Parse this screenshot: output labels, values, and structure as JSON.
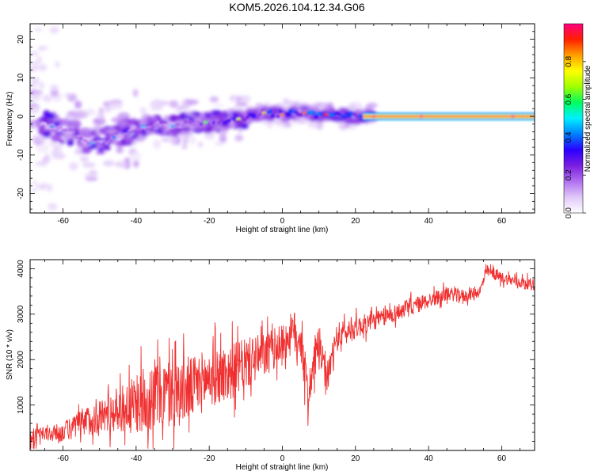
{
  "page": {
    "title": "KOM5.2026.104.12.34.G06"
  },
  "chart_data": [
    {
      "type": "heatmap",
      "title": "",
      "xlabel": "Height of straight line (km)",
      "ylabel": "Frequency (Hz)",
      "xlim": [
        -69,
        69
      ],
      "ylim": [
        -25,
        24
      ],
      "xticks": [
        -60,
        -40,
        -20,
        0,
        20,
        40,
        60
      ],
      "yticks": [
        -20,
        -10,
        0,
        10,
        20
      ],
      "colorbar": {
        "label": "Normalized spectral amplitude",
        "range": [
          0,
          1
        ],
        "ticks": [
          0.0,
          0.2,
          0.4,
          0.6,
          0.8
        ],
        "colormap": [
          "#ffffff",
          "#e0c8f8",
          "#b070f0",
          "#7a1fe0",
          "#2a00ff",
          "#0080ff",
          "#00f0ff",
          "#00ff60",
          "#a0ff00",
          "#ffff00",
          "#ffa000",
          "#ff2000",
          "#ff0080"
        ]
      },
      "ridge": {
        "x": [
          -65,
          -60,
          -55,
          -52,
          -48,
          -45,
          -40,
          -35,
          -30,
          -25,
          -20,
          -15,
          -10,
          -5,
          0,
          5,
          10,
          15,
          20,
          25,
          30,
          40,
          50,
          60,
          69
        ],
        "freq": [
          -2,
          -3.5,
          -5.5,
          -7,
          -6.5,
          -5,
          -3,
          -2,
          -2.5,
          -1.5,
          -1.5,
          -1,
          -0.5,
          1,
          0.5,
          1,
          0.5,
          0.5,
          0,
          0,
          0,
          0,
          0,
          0,
          0
        ],
        "amplitude": [
          0.25,
          0.3,
          0.35,
          0.3,
          0.3,
          0.25,
          0.3,
          0.35,
          0.3,
          0.4,
          0.5,
          0.55,
          0.6,
          0.65,
          0.7,
          0.7,
          0.75,
          0.75,
          0.7,
          0.95,
          0.95,
          0.95,
          0.95,
          0.95,
          0.95
        ]
      }
    },
    {
      "type": "line",
      "title": "",
      "xlabel": "Height of straight line (km)",
      "ylabel": "SNR (10 * v/v)",
      "xlim": [
        -69,
        69
      ],
      "ylim": [
        0,
        4200
      ],
      "xticks": [
        -60,
        -40,
        -20,
        0,
        20,
        40,
        60
      ],
      "yticks": [
        1000,
        2000,
        3000,
        4000
      ],
      "color": "#f03030",
      "series": [
        {
          "x": [
            -69,
            -65,
            -60,
            -55,
            -50,
            -45,
            -40,
            -35,
            -30,
            -25,
            -20,
            -15,
            -10,
            -5,
            0,
            3,
            5,
            7,
            10,
            12,
            15,
            20,
            25,
            30,
            35,
            40,
            45,
            50,
            54,
            56,
            60,
            65,
            69
          ],
          "y_mid": [
            300,
            350,
            400,
            600,
            750,
            900,
            1000,
            1250,
            1250,
            1350,
            1600,
            1700,
            1900,
            2100,
            2350,
            2600,
            2500,
            1200,
            2400,
            1500,
            2500,
            2700,
            2850,
            3000,
            3150,
            3300,
            3450,
            3400,
            3500,
            3950,
            3800,
            3700,
            3650
          ],
          "y_spread": [
            250,
            250,
            300,
            450,
            550,
            700,
            900,
            1200,
            1100,
            1000,
            950,
            900,
            800,
            700,
            600,
            700,
            800,
            600,
            600,
            500,
            450,
            350,
            300,
            280,
            280,
            250,
            220,
            200,
            180,
            180,
            180,
            180,
            180
          ],
          "y_max_observed": 4100
        }
      ]
    }
  ]
}
